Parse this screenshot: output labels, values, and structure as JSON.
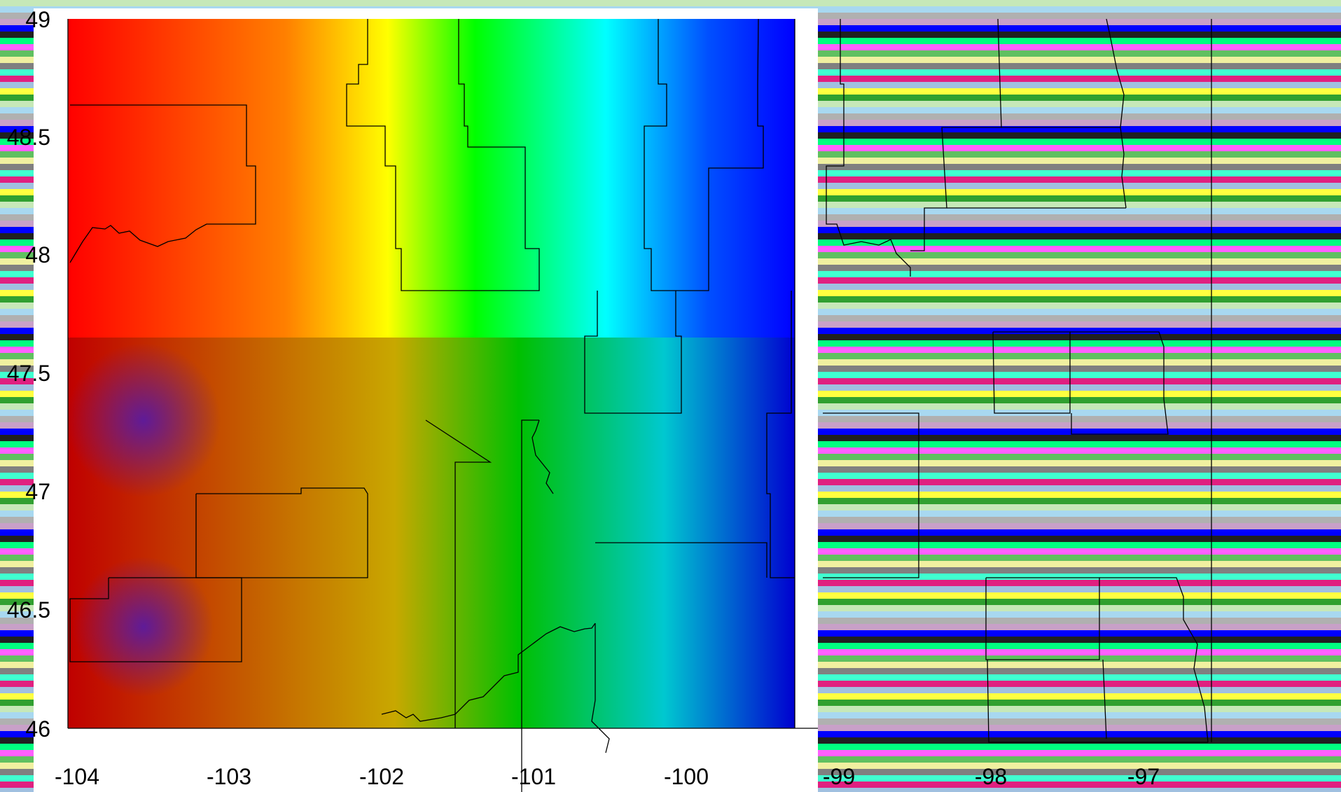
{
  "map": {
    "type": "heatmap",
    "x_ticks": [
      "-104",
      "-103",
      "-102",
      "-101",
      "-100",
      "-99",
      "-98",
      "-97"
    ],
    "y_ticks": [
      "49",
      "48.5",
      "48",
      "47.5",
      "47",
      "46.5",
      "46"
    ],
    "colors": {
      "high": "#ff0000",
      "mid_high": "#ffff00",
      "mid": "#00ff00",
      "mid_low": "#00ffff",
      "low": "#0000ff",
      "cold_spot": "#5a1aa0"
    }
  }
}
